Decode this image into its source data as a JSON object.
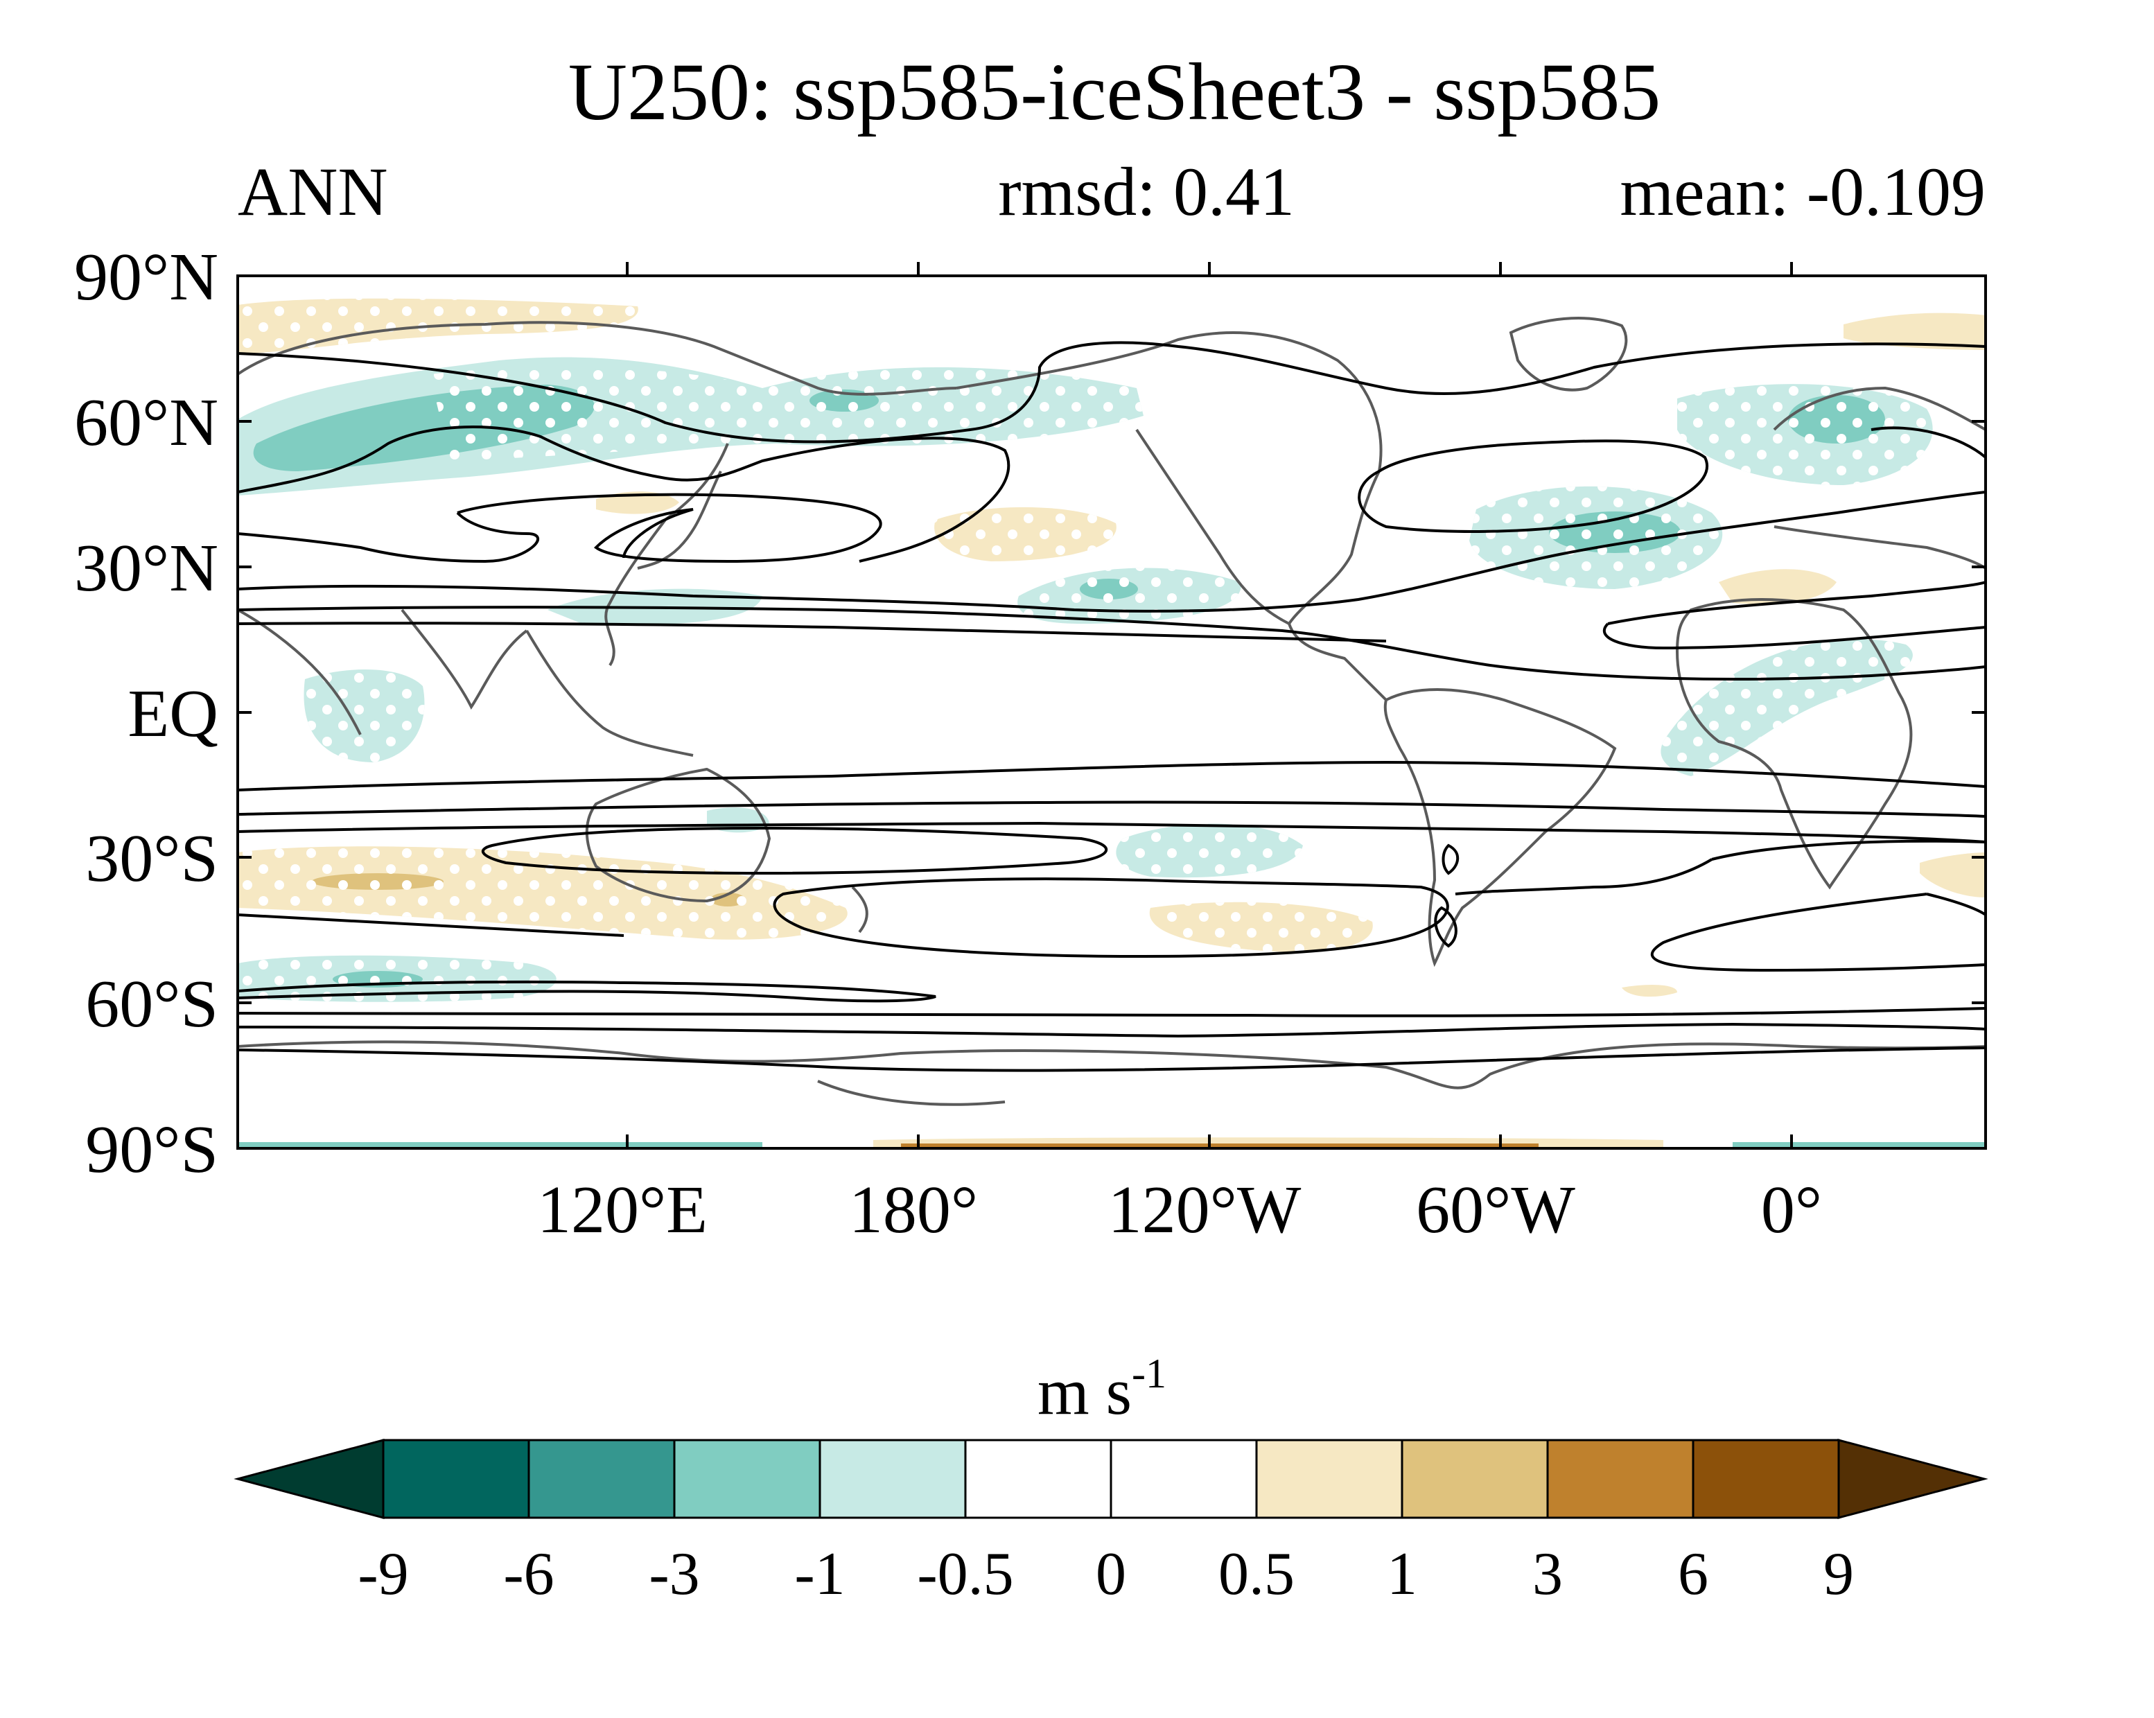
{
  "title": "U250: ssp585-iceSheet3 - ssp585",
  "season": "ANN",
  "rmsd_text": "rmsd: 0.41",
  "mean_text": "mean: -0.109",
  "lat_labels": [
    "90°N",
    "60°N",
    "30°N",
    "EQ",
    "30°S",
    "60°S",
    "90°S"
  ],
  "lon_labels": [
    "120°E",
    "180°",
    "120°W",
    "60°W",
    "0°"
  ],
  "colorbar": {
    "units_base": "m s",
    "units_exp": "-1",
    "labels": [
      "-9",
      "-6",
      "-3",
      "-1",
      "-0.5",
      "0",
      "0.5",
      "1",
      "3",
      "6",
      "9"
    ],
    "colors": [
      "#003c30",
      "#01665e",
      "#35978f",
      "#80cdc1",
      "#c7eae5",
      "#ffffff",
      "#ffffff",
      "#f6e8c3",
      "#dfc27d",
      "#bf812d",
      "#8c510a",
      "#543005"
    ]
  },
  "chart_data": {
    "type": "map",
    "projection": "cylindrical equidistant",
    "field": "U250 difference (m s-1)",
    "shading_levels": [
      -9,
      -6,
      -3,
      -1,
      -0.5,
      0,
      0.5,
      1,
      3,
      6,
      9
    ],
    "contour_overlay": "climatological U250 (black lines)",
    "stippling": "statistical significance (white dots)"
  },
  "colors": {
    "coast": "#5a5a5a",
    "contour": "#000000",
    "neg_light": "#c7eae5",
    "neg_mid": "#80cdc1",
    "pos_light": "#f6e8c3",
    "pos_mid": "#dfc27d",
    "pos_dark": "#bf812d"
  }
}
